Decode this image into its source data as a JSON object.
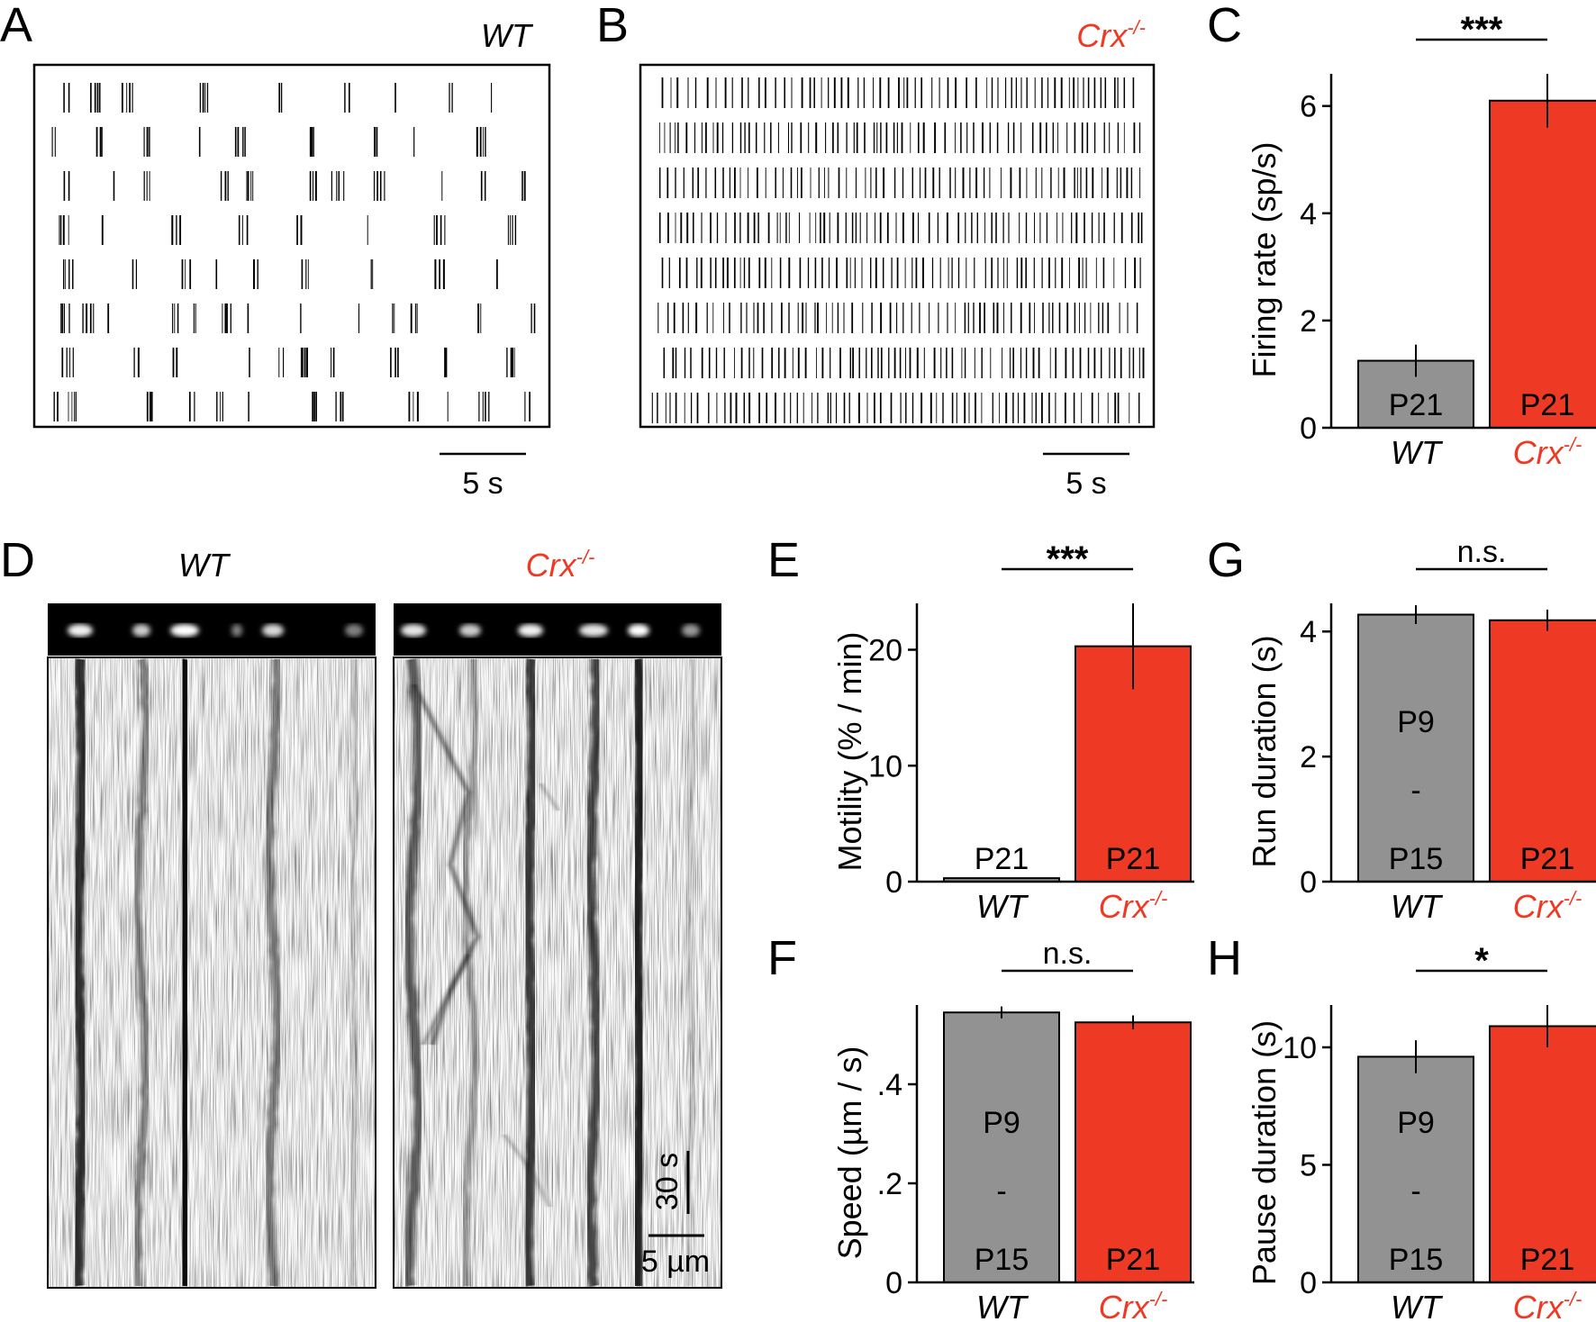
{
  "panels": {
    "A": {
      "letter": "A",
      "genotype": "WT",
      "scale_label": "5 s"
    },
    "B": {
      "letter": "B",
      "genotype": "Crx",
      "genotype_sup": "-/-",
      "scale_label": "5 s"
    },
    "D": {
      "letter": "D",
      "wt_label": "WT",
      "crx_label": "Crx",
      "crx_sup": "-/-",
      "time_scale": "30 s",
      "space_scale": "5 µm"
    },
    "E_letter": "E",
    "F_letter": "F",
    "G_letter": "G",
    "H_letter": "H",
    "C_letter": "C"
  },
  "colors": {
    "wt_bar": "#929292",
    "crx_bar": "#ee3a24",
    "crx_text": "#ee3a24"
  },
  "chart_data": [
    {
      "id": "C",
      "type": "bar",
      "ylabel": "Firing rate (sp/s)",
      "categories": [
        "WT",
        "Crx"
      ],
      "category_sup": [
        "",
        "-/-"
      ],
      "values": [
        1.25,
        6.1
      ],
      "errors": [
        0.3,
        0.5
      ],
      "bar_labels": [
        "P21",
        "P21"
      ],
      "ylim": [
        0,
        6.6
      ],
      "yticks": [
        0,
        2,
        4,
        6
      ],
      "ytick_labels": [
        "0",
        "2",
        "4",
        "6"
      ],
      "significance": "***"
    },
    {
      "id": "E",
      "type": "bar",
      "ylabel": "Motility (% / min)",
      "categories": [
        "WT",
        "Crx"
      ],
      "category_sup": [
        "",
        "-/-"
      ],
      "values": [
        0.3,
        20.3
      ],
      "errors": [
        0.0,
        3.7
      ],
      "bar_labels": [
        "P21",
        "P21"
      ],
      "ylim": [
        0,
        24
      ],
      "yticks": [
        0,
        10,
        20
      ],
      "ytick_labels": [
        "0",
        "10",
        "20"
      ],
      "significance": "***"
    },
    {
      "id": "F",
      "type": "bar",
      "ylabel": "Speed (µm / s)",
      "categories": [
        "WT",
        "Crx"
      ],
      "category_sup": [
        "",
        "-/-"
      ],
      "values": [
        0.545,
        0.525
      ],
      "errors": [
        0.012,
        0.014
      ],
      "bar_labels": [
        "P9\n-\nP15",
        "P21"
      ],
      "ylim": [
        0,
        0.56
      ],
      "yticks": [
        0,
        0.2,
        0.4
      ],
      "ytick_labels": [
        "0",
        ".2",
        ".4"
      ],
      "significance": "n.s."
    },
    {
      "id": "G",
      "type": "bar",
      "ylabel": "Run duration (s)",
      "categories": [
        "WT",
        "Crx"
      ],
      "category_sup": [
        "",
        "-/-"
      ],
      "values": [
        4.27,
        4.18
      ],
      "errors": [
        0.15,
        0.17
      ],
      "bar_labels": [
        "P9\n-\nP15",
        "P21"
      ],
      "ylim": [
        0,
        4.45
      ],
      "yticks": [
        0,
        2,
        4
      ],
      "ytick_labels": [
        "0",
        "2",
        "4"
      ],
      "significance": "n.s."
    },
    {
      "id": "H",
      "type": "bar",
      "ylabel": "Pause duration (s)",
      "categories": [
        "WT",
        "Crx"
      ],
      "category_sup": [
        "",
        "-/-"
      ],
      "values": [
        9.6,
        10.9
      ],
      "errors": [
        0.7,
        0.9
      ],
      "bar_labels": [
        "P9\n-\nP15",
        "P21"
      ],
      "ylim": [
        0,
        11.8
      ],
      "yticks": [
        0,
        5,
        10
      ],
      "ytick_labels": [
        "0",
        "5",
        "10"
      ],
      "significance": "*"
    }
  ]
}
